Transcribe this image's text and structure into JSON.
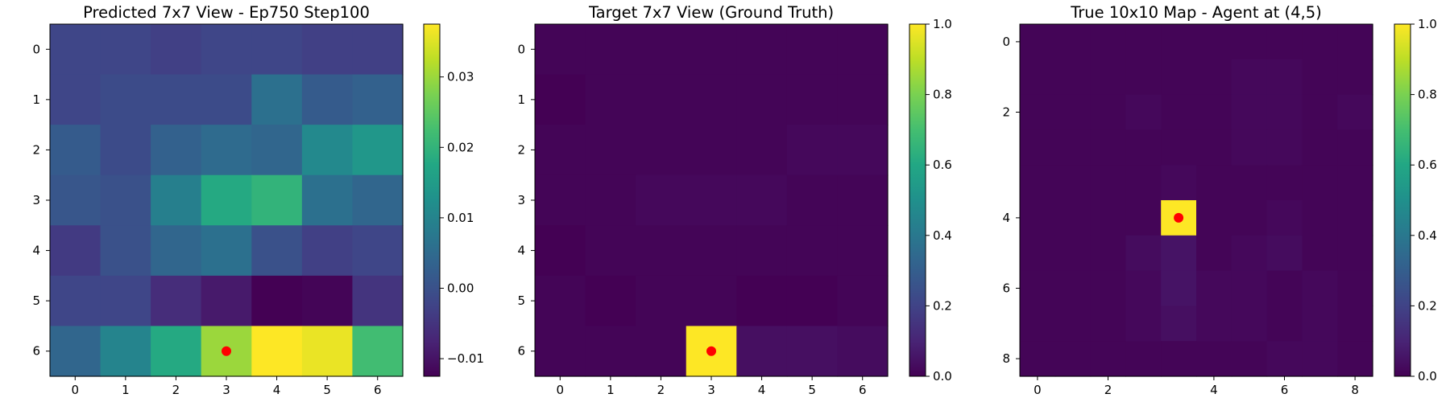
{
  "chart_data": [
    {
      "type": "heatmap",
      "title": "Predicted 7x7 View - Ep750 Step100",
      "xlabel": "",
      "ylabel": "",
      "x_ticks": [
        "0",
        "1",
        "2",
        "3",
        "4",
        "5",
        "6"
      ],
      "y_ticks": [
        "0",
        "1",
        "2",
        "3",
        "4",
        "5",
        "6"
      ],
      "colormap": "viridis",
      "vmin": -0.0125,
      "vmax": 0.0375,
      "colorbar_ticks": [
        {
          "value": 0.03,
          "label": "0.03"
        },
        {
          "value": 0.02,
          "label": "0.02"
        },
        {
          "value": 0.01,
          "label": "0.01"
        },
        {
          "value": 0.0,
          "label": "0.00"
        },
        {
          "value": -0.01,
          "label": "−0.01"
        }
      ],
      "values": [
        [
          -0.002,
          -0.002,
          -0.003,
          -0.002,
          -0.002,
          -0.003,
          -0.003
        ],
        [
          -0.002,
          -0.001,
          -0.001,
          -0.001,
          0.006,
          0.002,
          0.003
        ],
        [
          0.002,
          -0.001,
          0.003,
          0.005,
          0.004,
          0.011,
          0.014
        ],
        [
          0.001,
          0.0,
          0.009,
          0.018,
          0.02,
          0.006,
          0.004
        ],
        [
          -0.004,
          0.0,
          0.004,
          0.006,
          0.0,
          -0.003,
          -0.002
        ],
        [
          -0.002,
          -0.002,
          -0.006,
          -0.009,
          -0.0125,
          -0.012,
          -0.005
        ],
        [
          0.004,
          0.01,
          0.018,
          0.03,
          0.0375,
          0.036,
          0.022
        ]
      ],
      "marker": {
        "x": 3,
        "y": 6,
        "color": "#ff0000"
      }
    },
    {
      "type": "heatmap",
      "title": "Target 7x7 View (Ground Truth)",
      "xlabel": "",
      "ylabel": "",
      "x_ticks": [
        "0",
        "1",
        "2",
        "3",
        "4",
        "5",
        "6"
      ],
      "y_ticks": [
        "0",
        "1",
        "2",
        "3",
        "4",
        "5",
        "6"
      ],
      "colormap": "viridis",
      "vmin": 0.0,
      "vmax": 1.0,
      "colorbar_ticks": [
        {
          "value": 1.0,
          "label": "1.0"
        },
        {
          "value": 0.8,
          "label": "0.8"
        },
        {
          "value": 0.6,
          "label": "0.6"
        },
        {
          "value": 0.4,
          "label": "0.4"
        },
        {
          "value": 0.2,
          "label": "0.2"
        },
        {
          "value": 0.0,
          "label": "0.0"
        }
      ],
      "values": [
        [
          0.01,
          0.01,
          0.01,
          0.01,
          0.01,
          0.01,
          0.01
        ],
        [
          0.0,
          0.01,
          0.01,
          0.01,
          0.01,
          0.01,
          0.01
        ],
        [
          0.01,
          0.01,
          0.01,
          0.01,
          0.01,
          0.02,
          0.02
        ],
        [
          0.01,
          0.01,
          0.02,
          0.02,
          0.02,
          0.01,
          0.01
        ],
        [
          0.0,
          0.01,
          0.01,
          0.01,
          0.01,
          0.01,
          0.01
        ],
        [
          0.01,
          0.0,
          0.01,
          0.01,
          0.0,
          0.0,
          0.01
        ],
        [
          0.01,
          0.01,
          0.01,
          1.0,
          0.04,
          0.04,
          0.03
        ]
      ],
      "marker": {
        "x": 3,
        "y": 6,
        "color": "#ff0000"
      }
    },
    {
      "type": "heatmap",
      "title": "True 10x10 Map - Agent at (4,5)",
      "xlabel": "",
      "ylabel": "",
      "x_ticks": [
        "0",
        "2",
        "4",
        "6",
        "8"
      ],
      "y_ticks": [
        "0",
        "2",
        "4",
        "6",
        "8"
      ],
      "colormap": "viridis",
      "vmin": 0.0,
      "vmax": 1.0,
      "colorbar_ticks": [
        {
          "value": 1.0,
          "label": "1.0"
        },
        {
          "value": 0.8,
          "label": "0.8"
        },
        {
          "value": 0.6,
          "label": "0.6"
        },
        {
          "value": 0.4,
          "label": "0.4"
        },
        {
          "value": 0.2,
          "label": "0.2"
        },
        {
          "value": 0.0,
          "label": "0.0"
        }
      ],
      "values": [
        [
          0.01,
          0.01,
          0.01,
          0.01,
          0.01,
          0.01,
          0.01,
          0.01,
          0.01,
          0.01
        ],
        [
          0.01,
          0.01,
          0.01,
          0.01,
          0.01,
          0.01,
          0.02,
          0.02,
          0.01,
          0.01
        ],
        [
          0.01,
          0.01,
          0.01,
          0.02,
          0.01,
          0.01,
          0.02,
          0.02,
          0.01,
          0.02
        ],
        [
          0.01,
          0.01,
          0.01,
          0.01,
          0.01,
          0.01,
          0.02,
          0.02,
          0.01,
          0.01
        ],
        [
          0.01,
          0.01,
          0.01,
          0.01,
          0.02,
          0.01,
          0.01,
          0.01,
          0.01,
          0.01
        ],
        [
          0.01,
          0.01,
          0.01,
          0.01,
          1.0,
          0.01,
          0.01,
          0.02,
          0.01,
          0.01
        ],
        [
          0.01,
          0.01,
          0.01,
          0.03,
          0.05,
          0.01,
          0.02,
          0.03,
          0.01,
          0.01
        ],
        [
          0.01,
          0.01,
          0.01,
          0.02,
          0.05,
          0.02,
          0.02,
          0.01,
          0.02,
          0.01
        ],
        [
          0.01,
          0.01,
          0.01,
          0.02,
          0.04,
          0.02,
          0.02,
          0.01,
          0.02,
          0.01
        ],
        [
          0.01,
          0.01,
          0.01,
          0.01,
          0.01,
          0.01,
          0.01,
          0.02,
          0.02,
          0.01
        ]
      ],
      "marker": {
        "x": 4,
        "y": 5,
        "color": "#ff0000"
      }
    }
  ]
}
